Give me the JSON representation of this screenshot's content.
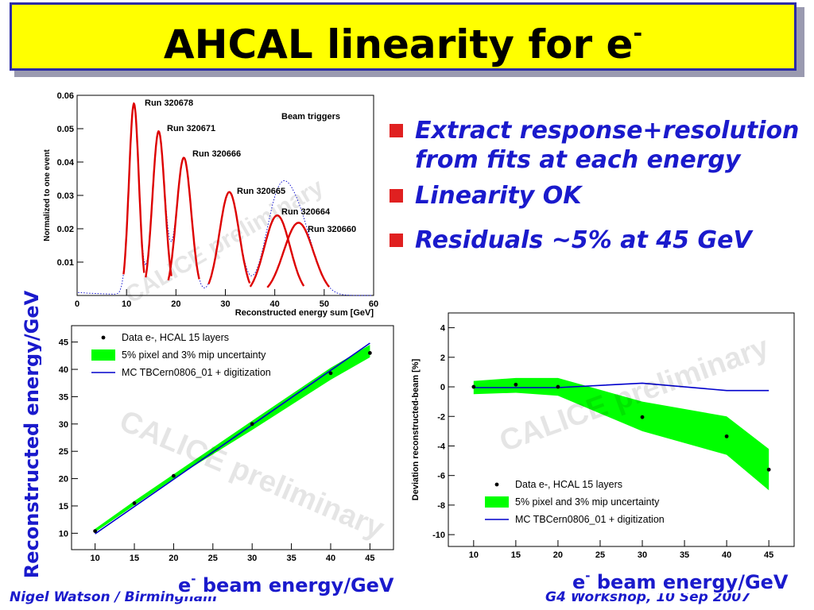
{
  "slide": {
    "title_main": "AHCAL linearity for e",
    "title_sup": "-",
    "bullets": [
      "Extract response+resolution from fits at each energy",
      "Linearity OK",
      "Residuals ~5% at 45 GeV"
    ],
    "y_label_big": "Reconstructed energy/GeV",
    "x_label_big_prefix": "e",
    "x_label_big_sup": "-",
    "x_label_big_suffix": " beam energy/GeV",
    "footer_left": "Nigel Watson / Birmingham",
    "footer_right": "G4 Workshop, 10 Sep 2007",
    "watermark": "CALICE preliminary",
    "colors": {
      "title_bg": "#ffff00",
      "title_border": "#2c2ca6",
      "text_blue": "#1a1acc",
      "bullet_red": "#e02020",
      "band_green": "#00ff00",
      "fit_red": "#dd0000",
      "mc_blue": "#0000cc"
    }
  },
  "chart_data": [
    {
      "type": "line",
      "name": "spectra",
      "xlabel": "Reconstructed energy sum [GeV]",
      "ylabel": "Normalized to one event",
      "xlim": [
        0,
        60
      ],
      "ylim": [
        0,
        0.06
      ],
      "x_ticks": [
        0,
        10,
        20,
        30,
        40,
        50,
        60
      ],
      "y_ticks": [
        0.01,
        0.02,
        0.03,
        0.04,
        0.05,
        0.06
      ],
      "y_tick_labels": [
        "0.01",
        "0.02",
        "0.03",
        "0.04",
        "0.05",
        "0.06"
      ],
      "annotation": "Beam triggers",
      "series": [
        {
          "name": "Run 320678",
          "mean": 11.5,
          "sigma": 1.0,
          "peak": 0.0575
        },
        {
          "name": "Run 320671",
          "mean": 16.5,
          "sigma": 1.25,
          "peak": 0.0492
        },
        {
          "name": "Run 320666",
          "mean": 21.6,
          "sigma": 1.5,
          "peak": 0.0413
        },
        {
          "name": "Run 320665",
          "mean": 30.8,
          "sigma": 2.0,
          "peak": 0.031
        },
        {
          "name": "Run 320664",
          "mean": 40.5,
          "sigma": 2.6,
          "peak": 0.024
        },
        {
          "name": "Run 320660",
          "mean": 44.8,
          "sigma": 3.0,
          "peak": 0.0218
        }
      ]
    },
    {
      "type": "scatter",
      "name": "linearity",
      "xlabel": "",
      "ylabel": "",
      "xlim": [
        7,
        48
      ],
      "ylim": [
        7,
        48
      ],
      "x_ticks": [
        10,
        15,
        20,
        25,
        30,
        35,
        40,
        45
      ],
      "y_ticks": [
        10,
        15,
        20,
        25,
        30,
        35,
        40,
        45
      ],
      "legend": [
        "Data e-, HCAL 15 layers",
        "5% pixel and 3% mip uncertainty",
        "MC TBCern0806_01 + digitization"
      ],
      "data": {
        "x": [
          10,
          15,
          20,
          30,
          40,
          45
        ],
        "y": [
          10.4,
          15.5,
          20.5,
          30.0,
          39.3,
          43.0
        ]
      },
      "band": {
        "x": [
          10,
          15,
          20,
          30,
          40,
          45
        ],
        "low": [
          10.2,
          15.1,
          20.0,
          28.9,
          38.1,
          42.2
        ],
        "high": [
          10.8,
          15.9,
          20.8,
          30.6,
          40.3,
          44.5
        ]
      },
      "mc": {
        "x": [
          10,
          45
        ],
        "y": [
          9.9,
          44.8
        ]
      }
    },
    {
      "type": "scatter",
      "name": "deviation",
      "xlabel": "",
      "ylabel": "Deviation reconstructed-beam [%]",
      "xlim": [
        7,
        48
      ],
      "ylim": [
        -10.8,
        5
      ],
      "x_ticks": [
        10,
        15,
        20,
        25,
        30,
        35,
        40,
        45
      ],
      "y_ticks": [
        -10,
        -8,
        -6,
        -4,
        -2,
        0,
        2,
        4
      ],
      "legend": [
        "Data e-, HCAL 15 layers",
        "5% pixel and 3% mip uncertainty",
        "MC TBCern0806_01 + digitization"
      ],
      "data": {
        "x": [
          10,
          15,
          20,
          30,
          40,
          45
        ],
        "y": [
          0.0,
          0.15,
          0.0,
          -2.05,
          -3.35,
          -5.6
        ]
      },
      "band": {
        "x": [
          10,
          15,
          20,
          30,
          40,
          45
        ],
        "low": [
          -0.5,
          -0.4,
          -0.6,
          -3.0,
          -4.6,
          -7.0
        ],
        "high": [
          0.4,
          0.6,
          0.6,
          -1.0,
          -2.0,
          -4.2
        ]
      },
      "mc": {
        "x": [
          10,
          15,
          20,
          30,
          40,
          45
        ],
        "y": [
          -0.05,
          -0.05,
          -0.05,
          0.25,
          -0.25,
          -0.25
        ]
      }
    }
  ]
}
